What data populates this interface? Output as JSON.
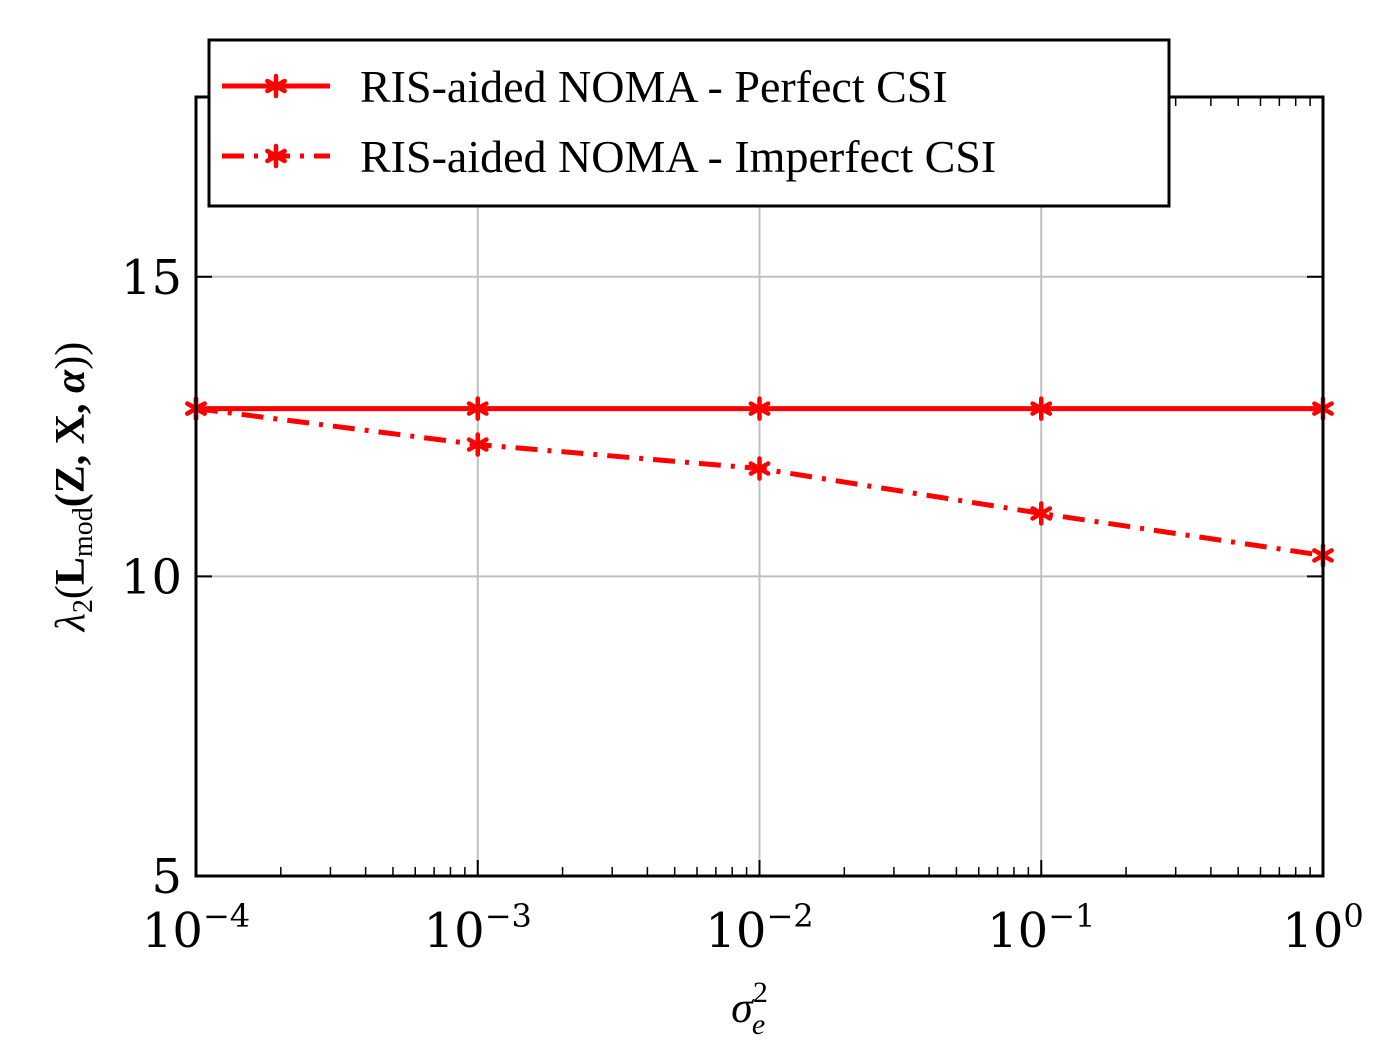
{
  "chart_data": {
    "type": "line",
    "title": "",
    "xlabel": {
      "base": "σ",
      "sup": "2",
      "sub": "e"
    },
    "ylabel": {
      "pre": "λ",
      "pre_sub": "2",
      "open": "(",
      "L": "L",
      "L_sub": "mod",
      "args": "(Z, X, ",
      "alpha": "α",
      "close": "))"
    },
    "xscale": "log",
    "xlim": [
      0.0001,
      1
    ],
    "ylim": [
      5,
      18
    ],
    "x": [
      0.0001,
      0.001,
      0.01,
      0.1,
      1
    ],
    "xticks": [
      {
        "base": "10",
        "exp": "−4"
      },
      {
        "base": "10",
        "exp": "−3"
      },
      {
        "base": "10",
        "exp": "−2"
      },
      {
        "base": "10",
        "exp": "−1"
      },
      {
        "base": "10",
        "exp": "0"
      }
    ],
    "yticks": [
      "5",
      "10",
      "15"
    ],
    "grid": true,
    "legend_position": "top",
    "series": [
      {
        "name": "RIS-aided NOMA - Perfect CSI",
        "values": [
          12.8,
          12.8,
          12.8,
          12.8,
          12.8
        ],
        "style": "solid",
        "marker": "star",
        "color": "#ff0000"
      },
      {
        "name": "RIS-aided NOMA - Imperfect CSI",
        "values": [
          12.8,
          12.2,
          11.8,
          11.05,
          10.35
        ],
        "style": "dashdot",
        "marker": "star",
        "color": "#ff0000"
      }
    ]
  }
}
